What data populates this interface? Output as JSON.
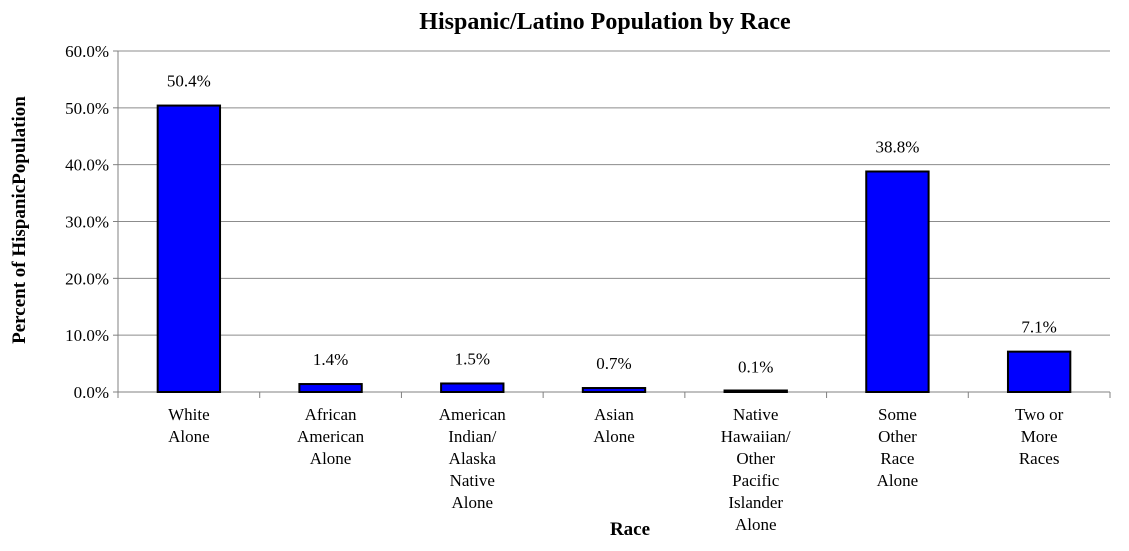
{
  "chart_data": {
    "type": "bar",
    "title": "Hispanic/Latino Population by Race",
    "xlabel": "Race",
    "ylabel": "Percent of HispanicPopulation",
    "ylim": [
      0,
      60
    ],
    "yticks": [
      "0.0%",
      "10.0%",
      "20.0%",
      "30.0%",
      "40.0%",
      "50.0%",
      "60.0%"
    ],
    "grid": true,
    "legend": "none",
    "bar_color": "#0000ff",
    "categories": [
      [
        "White",
        "Alone"
      ],
      [
        "African",
        "American",
        "Alone"
      ],
      [
        "American",
        "Indian/",
        "Alaska",
        "Native",
        "Alone"
      ],
      [
        "Asian",
        "Alone"
      ],
      [
        "Native",
        "Hawaiian/",
        "Other",
        "Pacific",
        "Islander",
        "Alone"
      ],
      [
        "Some",
        "Other",
        "Race",
        "Alone"
      ],
      [
        "Two or",
        "More",
        "Races"
      ]
    ],
    "values": [
      50.4,
      1.4,
      1.5,
      0.7,
      0.1,
      38.8,
      7.1
    ],
    "data_labels": [
      "50.4%",
      "1.4%",
      "1.5%",
      "0.7%",
      "0.1%",
      "38.8%",
      "7.1%"
    ]
  }
}
